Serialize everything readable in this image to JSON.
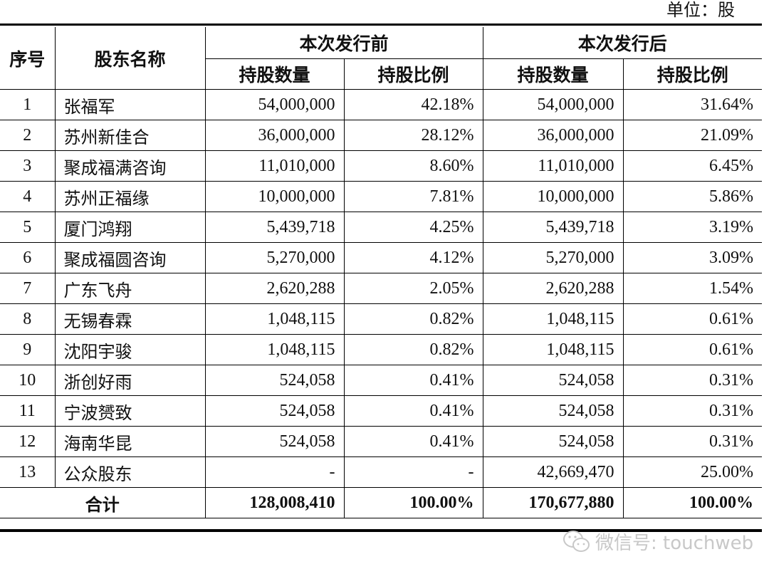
{
  "unit_label": "单位：股",
  "headers": {
    "seq": "序号",
    "name": "股东名称",
    "before": "本次发行前",
    "after": "本次发行后",
    "shares": "持股数量",
    "ratio": "持股比例"
  },
  "rows": [
    {
      "no": "1",
      "name": "张福军",
      "before_shares": "54,000,000",
      "before_ratio": "42.18%",
      "after_shares": "54,000,000",
      "after_ratio": "31.64%"
    },
    {
      "no": "2",
      "name": "苏州新佳合",
      "before_shares": "36,000,000",
      "before_ratio": "28.12%",
      "after_shares": "36,000,000",
      "after_ratio": "21.09%"
    },
    {
      "no": "3",
      "name": "聚成福满咨询",
      "before_shares": "11,010,000",
      "before_ratio": "8.60%",
      "after_shares": "11,010,000",
      "after_ratio": "6.45%"
    },
    {
      "no": "4",
      "name": "苏州正福缘",
      "before_shares": "10,000,000",
      "before_ratio": "7.81%",
      "after_shares": "10,000,000",
      "after_ratio": "5.86%"
    },
    {
      "no": "5",
      "name": "厦门鸿翔",
      "before_shares": "5,439,718",
      "before_ratio": "4.25%",
      "after_shares": "5,439,718",
      "after_ratio": "3.19%"
    },
    {
      "no": "6",
      "name": "聚成福圆咨询",
      "before_shares": "5,270,000",
      "before_ratio": "4.12%",
      "after_shares": "5,270,000",
      "after_ratio": "3.09%"
    },
    {
      "no": "7",
      "name": "广东飞舟",
      "before_shares": "2,620,288",
      "before_ratio": "2.05%",
      "after_shares": "2,620,288",
      "after_ratio": "1.54%"
    },
    {
      "no": "8",
      "name": "无锡春霖",
      "before_shares": "1,048,115",
      "before_ratio": "0.82%",
      "after_shares": "1,048,115",
      "after_ratio": "0.61%"
    },
    {
      "no": "9",
      "name": "沈阳宇骏",
      "before_shares": "1,048,115",
      "before_ratio": "0.82%",
      "after_shares": "1,048,115",
      "after_ratio": "0.61%"
    },
    {
      "no": "10",
      "name": "浙创好雨",
      "before_shares": "524,058",
      "before_ratio": "0.41%",
      "after_shares": "524,058",
      "after_ratio": "0.31%"
    },
    {
      "no": "11",
      "name": "宁波赟致",
      "before_shares": "524,058",
      "before_ratio": "0.41%",
      "after_shares": "524,058",
      "after_ratio": "0.31%"
    },
    {
      "no": "12",
      "name": "海南华昆",
      "before_shares": "524,058",
      "before_ratio": "0.41%",
      "after_shares": "524,058",
      "after_ratio": "0.31%"
    },
    {
      "no": "13",
      "name": "公众股东",
      "before_shares": "-",
      "before_ratio": "-",
      "after_shares": "42,669,470",
      "after_ratio": "25.00%"
    }
  ],
  "total": {
    "label": "合计",
    "before_shares": "128,008,410",
    "before_ratio": "100.00%",
    "after_shares": "170,677,880",
    "after_ratio": "100.00%"
  },
  "watermark": {
    "text": "微信号: touchweb",
    "icon": "wechat-icon"
  }
}
